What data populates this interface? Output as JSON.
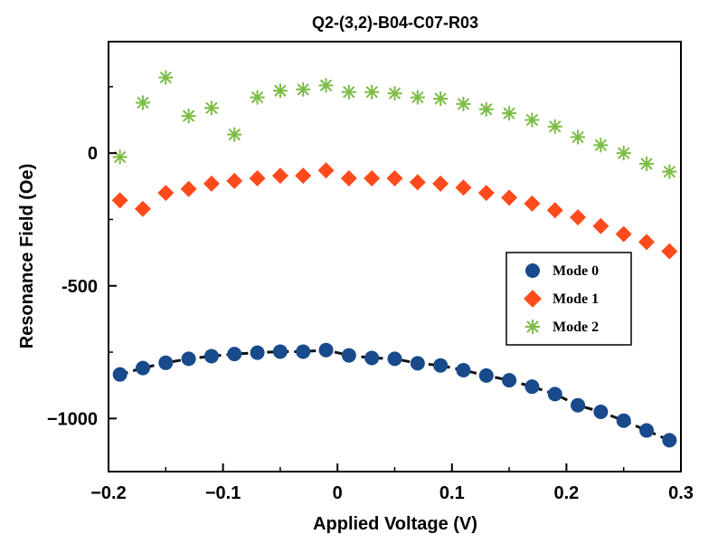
{
  "chart_data": {
    "type": "scatter",
    "title": "Q2-(3,2)-B04-C07-R03",
    "xlabel": "Applied Voltage (V)",
    "ylabel": "Resonance Field (Oe)",
    "xlim": [
      -0.2,
      0.3
    ],
    "ylim": [
      -1200,
      420
    ],
    "x_ticks": [
      -0.2,
      -0.1,
      0.0,
      0.1,
      0.2,
      0.3
    ],
    "x_tick_labels": [
      "−0.2",
      "−0.1",
      "0",
      "0.1",
      "0.2",
      "0.3"
    ],
    "y_ticks": [
      0,
      -500,
      -1000
    ],
    "y_tick_labels": [
      "0",
      "-500",
      "−1000"
    ],
    "grid": false,
    "legend_position": "middle-right",
    "colors": {
      "mode0": "#184a8c",
      "mode1": "#ff4a1c",
      "mode2": "#7cbc46",
      "fit": "#111111"
    },
    "series": [
      {
        "name": "Mode 0",
        "marker": "circle",
        "x": [
          -0.19,
          -0.17,
          -0.15,
          -0.13,
          -0.11,
          -0.09,
          -0.07,
          -0.05,
          -0.03,
          -0.01,
          0.01,
          0.03,
          0.05,
          0.07,
          0.09,
          0.11,
          0.13,
          0.15,
          0.17,
          0.19,
          0.21,
          0.23,
          0.25,
          0.27,
          0.29
        ],
        "y": [
          -834,
          -810,
          -790,
          -775,
          -765,
          -757,
          -752,
          -748,
          -748,
          -742,
          -762,
          -772,
          -775,
          -792,
          -800,
          -818,
          -838,
          -856,
          -880,
          -908,
          -950,
          -975,
          -1008,
          -1045,
          -1082
        ]
      },
      {
        "name": "Mode 1",
        "marker": "diamond",
        "x": [
          -0.19,
          -0.17,
          -0.15,
          -0.13,
          -0.11,
          -0.09,
          -0.07,
          -0.05,
          -0.03,
          -0.01,
          0.01,
          0.03,
          0.05,
          0.07,
          0.09,
          0.11,
          0.13,
          0.15,
          0.17,
          0.19,
          0.21,
          0.23,
          0.25,
          0.27,
          0.29
        ],
        "y": [
          -178,
          -210,
          -150,
          -135,
          -115,
          -105,
          -95,
          -85,
          -85,
          -65,
          -95,
          -95,
          -95,
          -110,
          -115,
          -130,
          -150,
          -168,
          -190,
          -215,
          -242,
          -275,
          -305,
          -335,
          -370
        ]
      },
      {
        "name": "Mode 2",
        "marker": "asterisk",
        "x": [
          -0.19,
          -0.17,
          -0.15,
          -0.13,
          -0.11,
          -0.09,
          -0.07,
          -0.05,
          -0.03,
          -0.01,
          0.01,
          0.03,
          0.05,
          0.07,
          0.09,
          0.11,
          0.13,
          0.15,
          0.17,
          0.19,
          0.21,
          0.23,
          0.25,
          0.27,
          0.29
        ],
        "y": [
          -15,
          190,
          285,
          140,
          170,
          70,
          210,
          235,
          240,
          255,
          230,
          230,
          225,
          210,
          205,
          185,
          165,
          150,
          125,
          100,
          60,
          30,
          0,
          -40,
          -70
        ]
      }
    ]
  }
}
